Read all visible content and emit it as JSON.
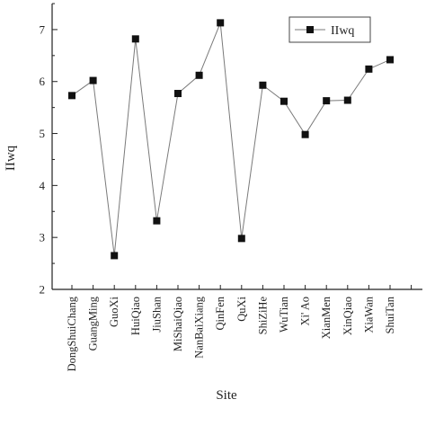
{
  "chart_data": {
    "type": "line",
    "xlabel": "Site",
    "ylabel": "IIwq",
    "ylim": [
      2,
      7.5
    ],
    "y_ticks": [
      2,
      3,
      4,
      5,
      6,
      7
    ],
    "grid": false,
    "legend_position": "top-right",
    "categories": [
      "DongShuiChang",
      "GuangMing",
      "GuoXi",
      "HuiQiao",
      "JiuShan",
      "MiShaiQiao",
      "NanBaiXiang",
      "QinFen",
      "QuXi",
      "ShiZiHe",
      "WuTian",
      "Xi' Ao",
      "XianMen",
      "XinQiao",
      "XiaWan",
      "ShuiTan"
    ],
    "series": [
      {
        "name": "IIwq",
        "values": [
          5.73,
          6.02,
          2.65,
          6.82,
          3.32,
          5.77,
          6.12,
          7.13,
          2.98,
          5.93,
          5.62,
          4.98,
          5.63,
          5.64,
          6.24,
          6.42
        ]
      }
    ],
    "colors": {
      "line": "#7a7a7a",
      "marker": "#111111",
      "axis": "#222222"
    }
  }
}
